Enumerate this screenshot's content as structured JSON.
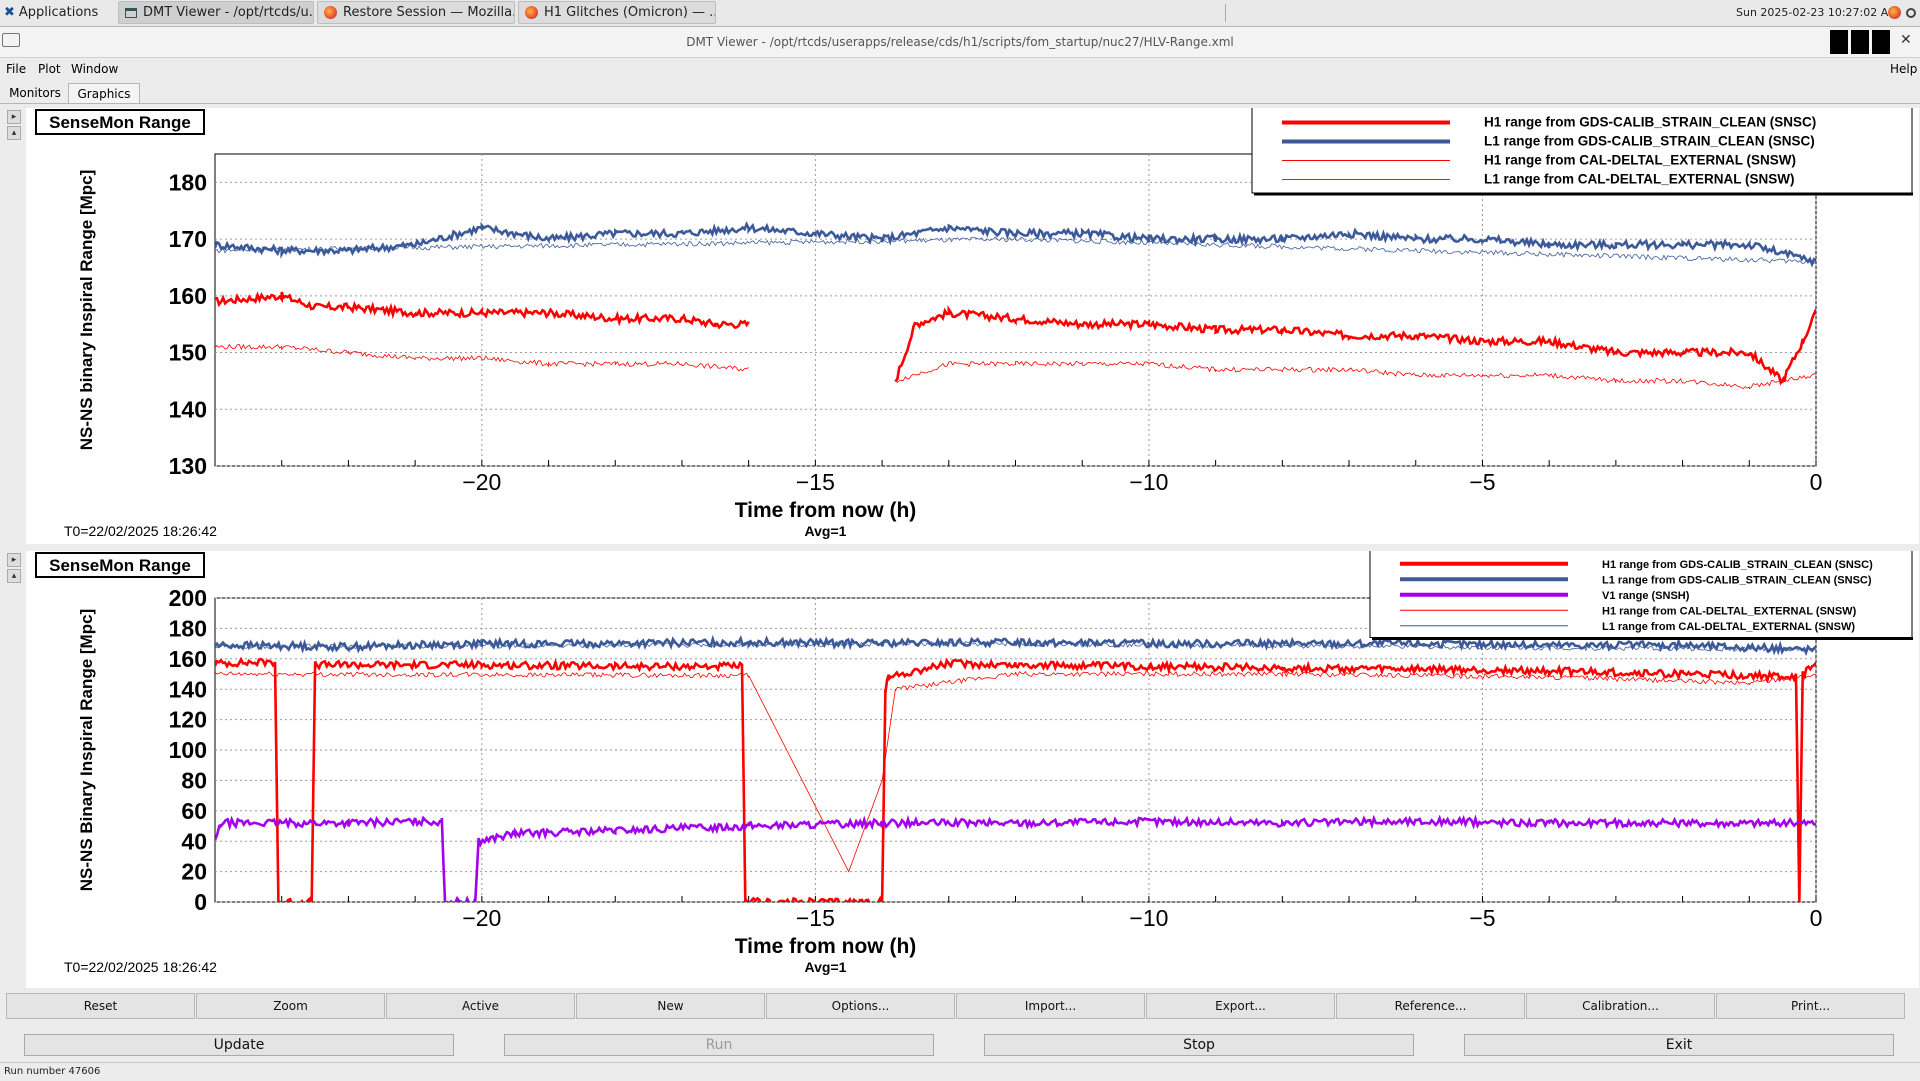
{
  "taskbar": {
    "apps_label": "Applications",
    "tasks": [
      {
        "label": "DMT Viewer - /opt/rtcds/u..."
      },
      {
        "label": "Restore Session — Mozilla..."
      },
      {
        "label": "H1 Glitches (Omicron) — ..."
      }
    ],
    "clock": "Sun 2025-02-23 10:27:02 AM"
  },
  "window": {
    "title": "DMT Viewer - /opt/rtcds/userapps/release/cds/h1/scripts/fom_startup/nuc27/HLV-Range.xml",
    "close_glyph": "✕"
  },
  "menubar": {
    "file": "File",
    "plot": "Plot",
    "window": "Window",
    "help": "Help"
  },
  "tabs": [
    {
      "label": "Monitors"
    },
    {
      "label": "Graphics"
    }
  ],
  "colors": {
    "h1": "#ff0000",
    "l1": "#3c5a9a",
    "v1": "#a300ee",
    "grid": "#9a9a9a"
  },
  "chart_data": [
    {
      "type": "line",
      "title": "SenseMon Range",
      "xlabel": "Time from now (h)",
      "ylabel": "NS-NS binary Inspiral Range [Mpc]",
      "xlim": [
        -24,
        0
      ],
      "ylim": [
        130,
        185
      ],
      "x_ticks": [
        -20,
        -15,
        -10,
        -5,
        0
      ],
      "x_tick_labels": [
        "−20",
        "−15",
        "−10",
        "−5",
        "0"
      ],
      "y_ticks": [
        130,
        140,
        150,
        160,
        170,
        180
      ],
      "y_tick_labels": [
        "130",
        "140",
        "150",
        "160",
        "170",
        "180"
      ],
      "grid": true,
      "legend_position": "top-right",
      "footer_left": "T0=22/02/2025 18:26:42",
      "footer_center": "Avg=1",
      "series": [
        {
          "name": "H1 range from GDS-CALIB_STRAIN_CLEAN (SNSC)",
          "color": "#ff0000",
          "style": "thick",
          "x": [
            -24,
            -23,
            -22.5,
            -22,
            -21,
            -20,
            -19,
            -18,
            -17,
            -16.5,
            -16,
            -15,
            -14,
            -13.8,
            -13.5,
            -13,
            -12,
            -11,
            -10,
            -9,
            -8,
            -7,
            -6,
            -5,
            -4,
            -3,
            -2,
            -1,
            -0.5,
            -0.2,
            0
          ],
          "y": [
            159,
            160,
            158,
            158,
            157,
            157,
            157,
            156,
            156,
            155,
            155,
            null,
            null,
            145,
            155,
            157,
            156,
            155,
            155,
            154,
            154,
            153,
            153,
            152,
            152,
            150,
            150,
            150,
            145,
            152,
            157
          ]
        },
        {
          "name": "L1 range from GDS-CALIB_STRAIN_CLEAN (SNSC)",
          "color": "#3c5a9a",
          "style": "thick",
          "x": [
            -24,
            -23,
            -22,
            -21,
            -20,
            -19,
            -18,
            -17,
            -16,
            -15,
            -14,
            -13,
            -12,
            -11,
            -10,
            -9,
            -8,
            -7,
            -6,
            -5,
            -4,
            -3,
            -2,
            -1,
            0
          ],
          "y": [
            169,
            168,
            168,
            169,
            172,
            170,
            171,
            171,
            172,
            171,
            170,
            172,
            171,
            171,
            170,
            170,
            170,
            171,
            170,
            170,
            169,
            169,
            169,
            169,
            166
          ]
        },
        {
          "name": "H1 range from CAL-DELTAL_EXTERNAL (SNSW)",
          "color": "#ff0000",
          "style": "thin",
          "x": [
            -24,
            -23,
            -22,
            -21,
            -20,
            -19,
            -18,
            -17,
            -16,
            -15,
            -14,
            -13.8,
            -13,
            -12,
            -11,
            -10,
            -9,
            -8,
            -7,
            -6,
            -5,
            -4,
            -3,
            -2,
            -1,
            0
          ],
          "y": [
            151,
            151,
            150,
            149,
            149,
            148,
            148,
            148,
            147,
            null,
            null,
            145,
            148,
            148,
            148,
            148,
            147,
            147,
            147,
            146,
            146,
            146,
            145,
            145,
            144,
            146
          ]
        },
        {
          "name": "L1 range from CAL-DELTAL_EXTERNAL (SNSW)",
          "color": "#3c5a9a",
          "style": "thin",
          "x": [
            -24,
            -12,
            0
          ],
          "y": [
            168,
            170,
            166
          ]
        }
      ]
    },
    {
      "type": "line",
      "title": "SenseMon Range",
      "xlabel": "Time from now (h)",
      "ylabel": "NS-NS Binary Inspiral Range [Mpc]",
      "xlim": [
        -24,
        0
      ],
      "ylim": [
        0,
        200
      ],
      "x_ticks": [
        -20,
        -15,
        -10,
        -5,
        0
      ],
      "x_tick_labels": [
        "−20",
        "−15",
        "−10",
        "−5",
        "0"
      ],
      "y_ticks": [
        0,
        20,
        40,
        60,
        80,
        100,
        120,
        140,
        160,
        180,
        200
      ],
      "y_tick_labels": [
        "0",
        "20",
        "40",
        "60",
        "80",
        "100",
        "120",
        "140",
        "160",
        "180",
        "200"
      ],
      "grid": true,
      "legend_position": "top-right",
      "footer_left": "T0=22/02/2025 18:26:42",
      "footer_center": "Avg=1",
      "series": [
        {
          "name": "H1 range from GDS-CALIB_STRAIN_CLEAN (SNSC)",
          "color": "#ff0000",
          "style": "thick",
          "x": [
            -24,
            -23.1,
            -23.05,
            -22.55,
            -22.5,
            -22,
            -20,
            -18,
            -16.1,
            -16.05,
            -14,
            -13.95,
            -13.9,
            -13,
            -12,
            -10,
            -8,
            -6,
            -4,
            -2,
            -1,
            -0.3,
            -0.25,
            -0.2,
            0
          ],
          "y": [
            157,
            158,
            0,
            0,
            156,
            156,
            156,
            155,
            155,
            0,
            0,
            140,
            148,
            157,
            156,
            155,
            154,
            153,
            152,
            150,
            149,
            148,
            0,
            150,
            156
          ]
        },
        {
          "name": "L1 range from GDS-CALIB_STRAIN_CLEAN (SNSC)",
          "color": "#3c5a9a",
          "style": "thick",
          "x": [
            -24,
            -22,
            -20,
            -18,
            -16,
            -14,
            -12,
            -10,
            -8,
            -6,
            -4,
            -2,
            0
          ],
          "y": [
            169,
            168,
            170,
            170,
            171,
            170,
            171,
            170,
            170,
            170,
            169,
            169,
            166
          ]
        },
        {
          "name": "V1 range (SNSH)",
          "color": "#a300ee",
          "style": "thick",
          "x": [
            -24,
            -23.9,
            -22,
            -21,
            -20.6,
            -20.55,
            -20.1,
            -20.05,
            -19.5,
            -18,
            -16,
            -14,
            -12,
            -10,
            -8,
            -6,
            -4,
            -2,
            0
          ],
          "y": [
            40,
            52,
            52,
            53,
            53,
            0,
            0,
            40,
            45,
            47,
            50,
            52,
            52,
            53,
            52,
            53,
            52,
            52,
            52
          ]
        },
        {
          "name": "H1 range from CAL-DELTAL_EXTERNAL (SNSW)",
          "color": "#ff0000",
          "style": "thin",
          "x": [
            -24,
            -16,
            -14.5,
            -14,
            -13.8,
            -12,
            -8,
            -4,
            -1,
            0
          ],
          "y": [
            150,
            149,
            20,
            80,
            140,
            150,
            150,
            148,
            144,
            150
          ]
        },
        {
          "name": "L1 range from CAL-DELTAL_EXTERNAL (SNSW)",
          "color": "#3c5a9a",
          "style": "thin",
          "x": [
            -24,
            -12,
            0
          ],
          "y": [
            168,
            170,
            166
          ]
        }
      ]
    }
  ],
  "toolbar": {
    "buttons": [
      {
        "label": "Reset"
      },
      {
        "label": "Zoom"
      },
      {
        "label": "Active"
      },
      {
        "label": "New"
      },
      {
        "label": "Options..."
      },
      {
        "label": "Import..."
      },
      {
        "label": "Export..."
      },
      {
        "label": "Reference..."
      },
      {
        "label": "Calibration..."
      },
      {
        "label": "Print..."
      }
    ]
  },
  "actions": {
    "update": "Update",
    "run": "Run",
    "stop": "Stop",
    "exit": "Exit"
  },
  "status": {
    "text": "Run number 47606"
  }
}
